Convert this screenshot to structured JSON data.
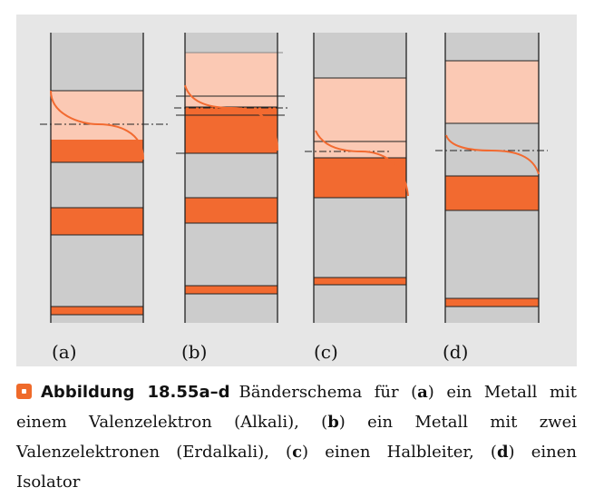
{
  "colors": {
    "panel": "#e6e6e6",
    "column_bg": "#cccccc",
    "band_filled": "#f26a30",
    "band_empty": "#fbc9b4",
    "line": "#222222",
    "accent": "#ef6a2a"
  },
  "panels": [
    {
      "label": "(a)"
    },
    {
      "label": "(b)"
    },
    {
      "label": "(c)"
    },
    {
      "label": "(d)"
    }
  ],
  "caption": {
    "figure_label": "Abbildung 18.55a–d",
    "t1": "Bänderschema für (",
    "a": "a",
    "t2": ") ein Metall mit einem Valenzelektron (Alkali), (",
    "b": "b",
    "t3": ") ein Metall mit zwei Valenzelektronen (Erdalkali), (",
    "c": "c",
    "t4": ") einen Halbleiter, (",
    "d": "d",
    "t5": ") einen Isolator"
  }
}
